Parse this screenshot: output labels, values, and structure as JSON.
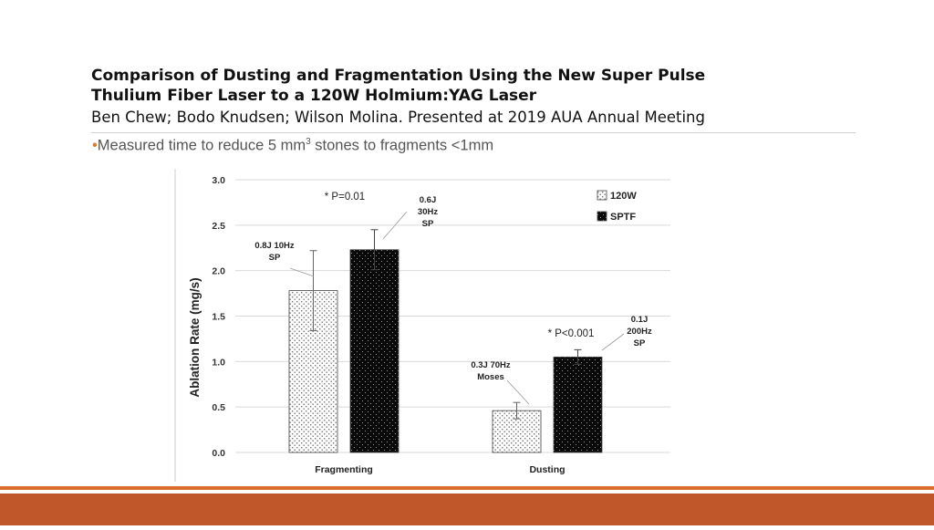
{
  "slide": {
    "title_line1": "Comparison of Dusting and Fragmentation Using the New Super Pulse",
    "title_line2": "Thulium Fiber Laser to a 120W Holmium:YAG Laser",
    "authors": "Ben Chew; Bodo Knudsen; Wilson Molina. Presented at 2019 AUA Annual Meeting",
    "bullet_pre": "Measured time to reduce 5 mm",
    "bullet_sup": "3",
    "bullet_post": " stones to fragments <1mm",
    "accent_color": "#e07a2e",
    "footer_color": "#c0572a"
  },
  "chart_data": {
    "type": "bar",
    "categories": [
      "Fragmenting",
      "Dusting"
    ],
    "series": [
      {
        "name": "120W",
        "values": [
          1.78,
          0.46
        ],
        "error": [
          0.44,
          0.09
        ],
        "pattern": "light-dotted"
      },
      {
        "name": "SPTF",
        "values": [
          2.23,
          1.05
        ],
        "error": [
          0.22,
          0.08
        ],
        "pattern": "dark-dotted"
      }
    ],
    "ylabel": "Ablation Rate (mg/s)",
    "xlabel": "",
    "ylim": [
      0,
      3.0
    ],
    "yticks": [
      "0.0",
      "0.5",
      "1.0",
      "1.5",
      "2.0",
      "2.5",
      "3.0"
    ],
    "grid": true,
    "legend_placement": "top-right",
    "annotations": {
      "frag_120w": [
        "0.8J 10Hz",
        "SP"
      ],
      "frag_sptf": [
        "0.6J",
        "30Hz",
        "SP"
      ],
      "frag_sig": "* P=0.01",
      "dust_120w": [
        "0.3J 70Hz",
        "Moses"
      ],
      "dust_sptf": [
        "0.1J",
        "200Hz",
        "SP"
      ],
      "dust_sig": "* P<0.001"
    }
  }
}
